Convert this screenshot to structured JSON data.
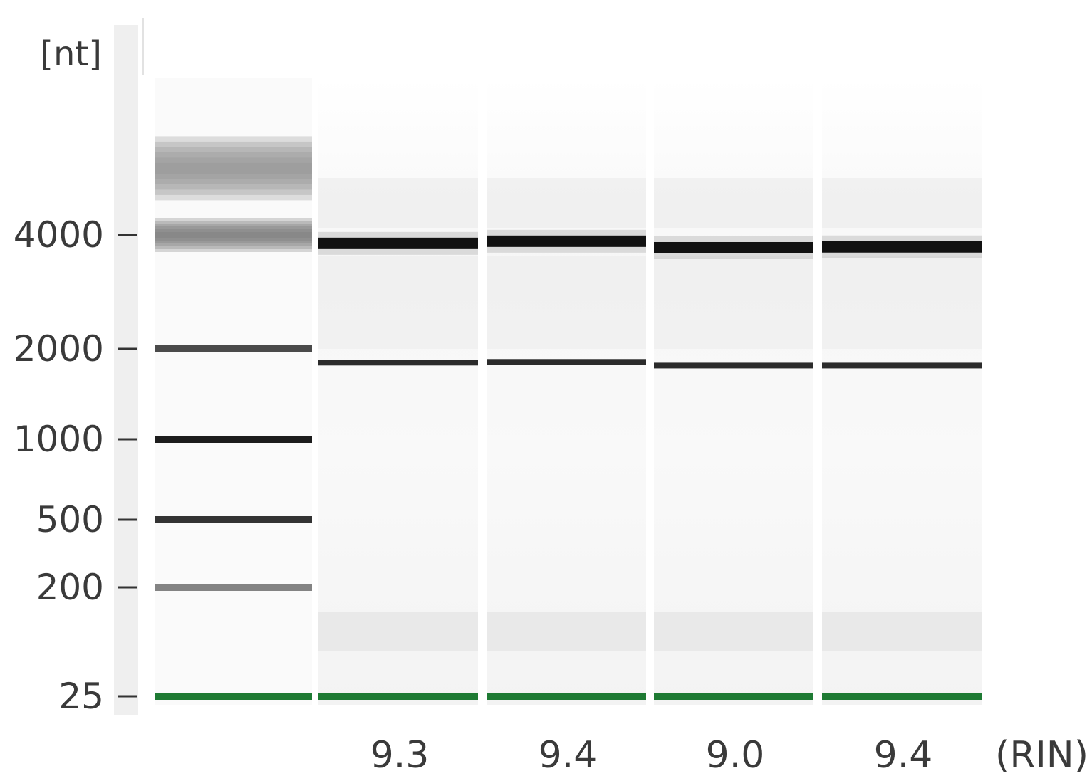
{
  "chart_data": {
    "type": "gel electrophoresis",
    "y_unit_label": "[nt]",
    "y_scale": "log",
    "ladder_ticks": [
      {
        "label": "4000",
        "value": 4000
      },
      {
        "label": "2000",
        "value": 2000
      },
      {
        "label": "1000",
        "value": 1000
      },
      {
        "label": "500",
        "value": 500
      },
      {
        "label": "200",
        "value": 200
      },
      {
        "label": "25",
        "value": 25
      }
    ],
    "ladder_bands_nt": [
      {
        "value": 6000,
        "intensity": 0.45,
        "spread": "wide"
      },
      {
        "value": 4000,
        "intensity": 0.55,
        "spread": "medium"
      },
      {
        "value": 2000,
        "intensity": 0.75,
        "spread": "narrow"
      },
      {
        "value": 1000,
        "intensity": 0.95,
        "spread": "narrow"
      },
      {
        "value": 500,
        "intensity": 0.85,
        "spread": "narrow"
      },
      {
        "value": 200,
        "intensity": 0.5,
        "spread": "narrow"
      },
      {
        "value": 25,
        "intensity": 1.0,
        "spread": "marker"
      }
    ],
    "lanes": [
      {
        "rin": "9.3",
        "bands_nt": [
          3800,
          1800,
          25
        ]
      },
      {
        "rin": "9.4",
        "bands_nt": [
          3850,
          1810,
          25
        ]
      },
      {
        "rin": "9.0",
        "bands_nt": [
          3700,
          1760,
          25
        ]
      },
      {
        "rin": "9.4",
        "bands_nt": [
          3720,
          1760,
          25
        ]
      }
    ],
    "x_unit_label": "(RIN)",
    "colors": {
      "marker": "#1e7a33",
      "band": "#111111",
      "ladder_background": "#fafafa",
      "axis_strip": "#efefef"
    }
  }
}
